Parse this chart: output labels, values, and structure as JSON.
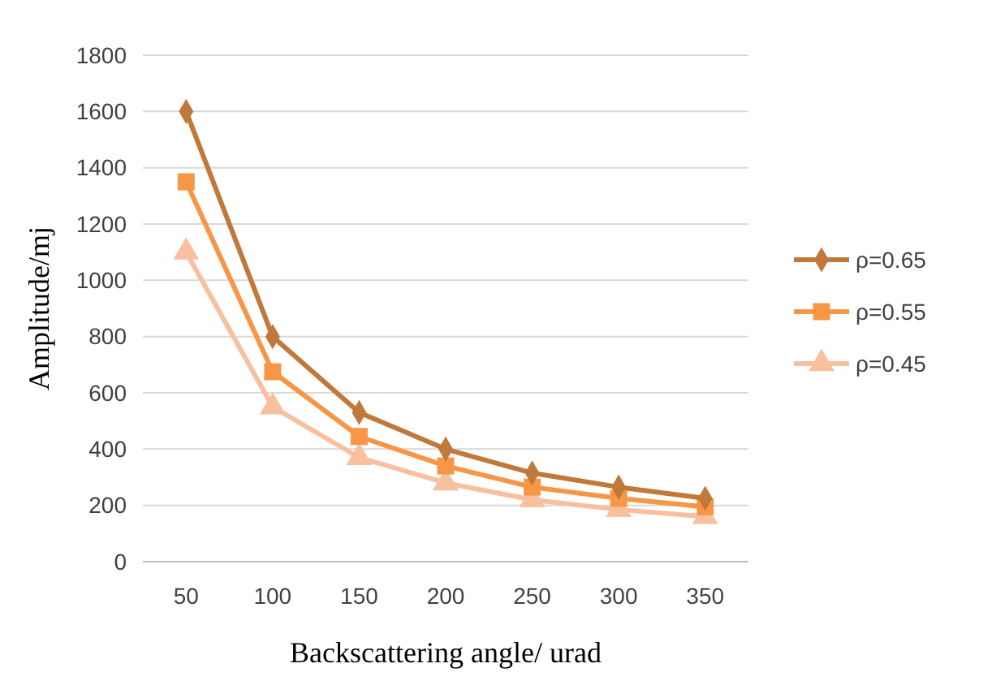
{
  "chart_data": {
    "type": "line",
    "xlabel": "Backscattering angle/ urad",
    "ylabel": "Amplitude/mj",
    "categories": [
      "50",
      "100",
      "150",
      "200",
      "250",
      "300",
      "350"
    ],
    "ylim": [
      0,
      1800
    ],
    "yticks": [
      0,
      200,
      400,
      600,
      800,
      1000,
      1200,
      1400,
      1600,
      1800
    ],
    "grid": "y",
    "legend": "right",
    "series": [
      {
        "name": "ρ=0.65",
        "color": "#c0793a",
        "marker": "diamond",
        "values": [
          1600,
          800,
          530,
          400,
          315,
          265,
          225
        ]
      },
      {
        "name": "ρ=0.55",
        "color": "#f79646",
        "marker": "square",
        "values": [
          1350,
          675,
          445,
          340,
          265,
          225,
          195
        ]
      },
      {
        "name": "ρ=0.45",
        "color": "#f9c0a0",
        "marker": "triangle",
        "values": [
          1100,
          550,
          370,
          280,
          220,
          185,
          160
        ]
      }
    ]
  }
}
